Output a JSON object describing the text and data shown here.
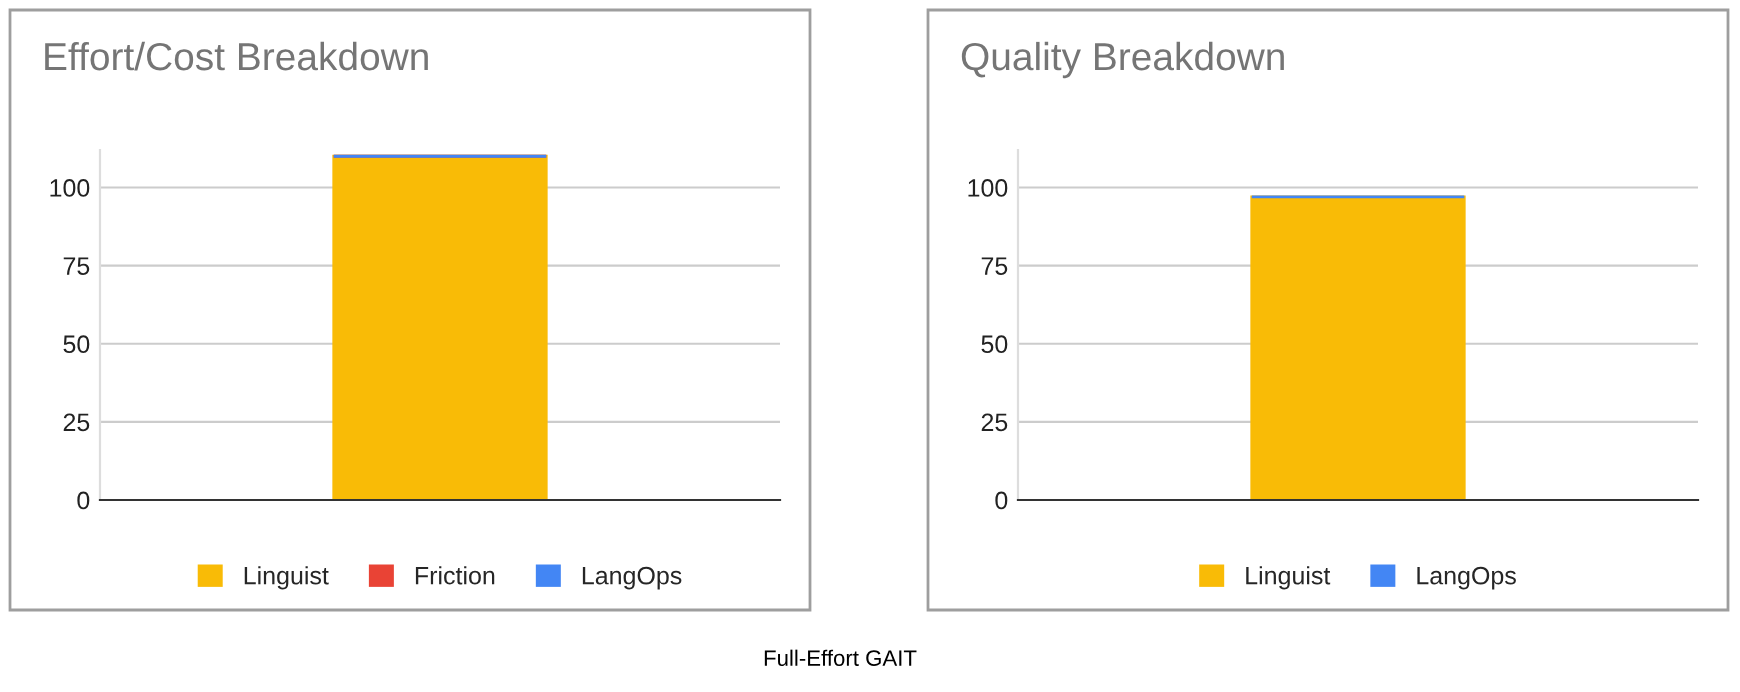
{
  "chart_data": [
    {
      "type": "bar",
      "title": "Effort/Cost Breakdown",
      "categories": [
        null
      ],
      "stacked": true,
      "ylim": [
        0,
        112
      ],
      "yticks": [
        0,
        25,
        50,
        75,
        100
      ],
      "grid": "y",
      "legend": "bottom",
      "tick_labels": "y",
      "series": [
        {
          "name": "Linguist",
          "color": "#f9bb06",
          "values": [
            110
          ]
        },
        {
          "name": "Friction",
          "color": "#e94335",
          "values": [
            0
          ]
        },
        {
          "name": "LangOps",
          "color": "#4386f4",
          "values": [
            0
          ]
        }
      ],
      "annotations": [
        "Full-Effort GAIT"
      ]
    },
    {
      "type": "bar",
      "title": "Quality Breakdown",
      "categories": [
        null
      ],
      "stacked": true,
      "ylim": [
        0,
        112
      ],
      "yticks": [
        0,
        25,
        50,
        75,
        100
      ],
      "grid": "y",
      "legend": "bottom",
      "tick_labels": "y",
      "series": [
        {
          "name": "Linguist",
          "color": "#f9bb06",
          "values": [
            97
          ]
        },
        {
          "name": "LangOps",
          "color": "#4386f4",
          "values": [
            0
          ]
        }
      ]
    }
  ]
}
